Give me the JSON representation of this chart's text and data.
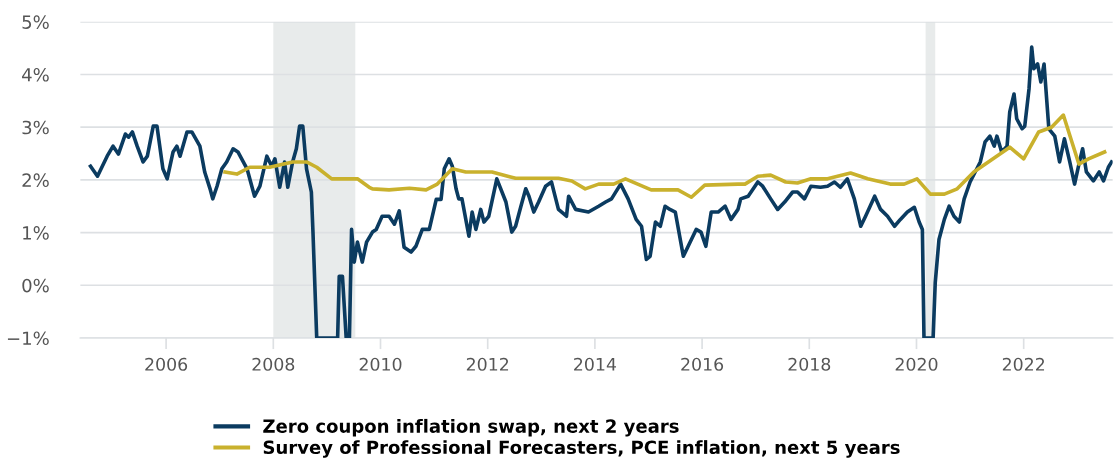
{
  "chart_data": {
    "type": "line",
    "xlim": [
      2004.4,
      2023.66
    ],
    "xticks": [
      2006,
      2008,
      2010,
      2012,
      2014,
      2016,
      2018,
      2020,
      2022
    ],
    "ylim": [
      -1,
      5
    ],
    "yticks": [
      {
        "value": -1,
        "label": "−1%"
      },
      {
        "value": 0,
        "label": "0%"
      },
      {
        "value": 1,
        "label": "1%"
      },
      {
        "value": 2,
        "label": "2%"
      },
      {
        "value": 3,
        "label": "3%"
      },
      {
        "value": 4,
        "label": "4%"
      },
      {
        "value": 5,
        "label": "5%"
      }
    ],
    "grid": "y",
    "legend": "bottom",
    "marker": "none",
    "line_style": "solid",
    "bands": [
      {
        "axis": "x",
        "from": 2008.0,
        "to": 2009.53,
        "color": "#e8ebeb"
      },
      {
        "axis": "x",
        "from": 2020.17,
        "to": 2020.35,
        "color": "#e8ebeb"
      }
    ],
    "series": [
      {
        "name": "Zero coupon inflation swap, next 2 years",
        "color": "#0b3b60",
        "x": [
          2004.59,
          2004.72,
          2004.9,
          2005.01,
          2005.11,
          2005.24,
          2005.3,
          2005.37,
          2005.46,
          2005.57,
          2005.65,
          2005.76,
          2005.83,
          2005.94,
          2006.02,
          2006.13,
          2006.2,
          2006.26,
          2006.39,
          2006.48,
          2006.63,
          2006.72,
          2006.82,
          2006.87,
          2006.95,
          2007.04,
          2007.13,
          2007.25,
          2007.34,
          2007.51,
          2007.65,
          2007.75,
          2007.88,
          2007.97,
          2008.03,
          2008.12,
          2008.21,
          2008.27,
          2008.36,
          2008.43,
          2008.49,
          2008.55,
          2008.62,
          2008.71,
          2008.74,
          2008.81,
          2009.2,
          2009.23,
          2009.29,
          2009.36,
          2009.42,
          2009.46,
          2009.51,
          2009.57,
          2009.66,
          2009.74,
          2009.85,
          2009.92,
          2010.03,
          2010.16,
          2010.26,
          2010.35,
          2010.44,
          2010.57,
          2010.66,
          2010.78,
          2010.91,
          2011.04,
          2011.13,
          2011.19,
          2011.28,
          2011.34,
          2011.41,
          2011.46,
          2011.52,
          2011.65,
          2011.71,
          2011.78,
          2011.87,
          2011.93,
          2012.02,
          2012.17,
          2012.34,
          2012.45,
          2012.52,
          2012.62,
          2012.71,
          2012.77,
          2012.86,
          2012.95,
          2013.08,
          2013.19,
          2013.27,
          2013.32,
          2013.47,
          2013.51,
          2013.64,
          2013.88,
          2014.07,
          2014.2,
          2014.31,
          2014.48,
          2014.62,
          2014.77,
          2014.87,
          2014.96,
          2015.03,
          2015.13,
          2015.22,
          2015.31,
          2015.4,
          2015.5,
          2015.65,
          2015.74,
          2015.89,
          2015.98,
          2016.07,
          2016.17,
          2016.3,
          2016.43,
          2016.54,
          2016.67,
          2016.72,
          2016.86,
          2017.04,
          2017.13,
          2017.28,
          2017.41,
          2017.54,
          2017.69,
          2017.78,
          2017.91,
          2018.03,
          2018.21,
          2018.34,
          2018.47,
          2018.58,
          2018.71,
          2018.84,
          2018.96,
          2019.05,
          2019.22,
          2019.33,
          2019.46,
          2019.59,
          2019.7,
          2019.83,
          2019.96,
          2020.05,
          2020.11,
          2020.14,
          2020.31,
          2020.35,
          2020.42,
          2020.52,
          2020.61,
          2020.7,
          2020.8,
          2020.89,
          2021.0,
          2021.19,
          2021.28,
          2021.37,
          2021.45,
          2021.5,
          2021.59,
          2021.69,
          2021.74,
          2021.82,
          2021.87,
          2021.97,
          2022.02,
          2022.1,
          2022.15,
          2022.19,
          2022.26,
          2022.32,
          2022.38,
          2022.47,
          2022.58,
          2022.67,
          2022.76,
          2022.86,
          2022.95,
          2023.04,
          2023.1,
          2023.17,
          2023.3,
          2023.41,
          2023.49,
          2023.58,
          2023.64
        ],
        "values": [
          2.26,
          2.07,
          2.45,
          2.64,
          2.49,
          2.87,
          2.81,
          2.91,
          2.64,
          2.34,
          2.45,
          3.02,
          3.02,
          2.21,
          2.02,
          2.53,
          2.64,
          2.45,
          2.91,
          2.91,
          2.64,
          2.15,
          1.83,
          1.64,
          1.88,
          2.21,
          2.34,
          2.59,
          2.53,
          2.21,
          1.69,
          1.88,
          2.45,
          2.26,
          2.4,
          1.86,
          2.34,
          1.86,
          2.34,
          2.59,
          3.02,
          3.02,
          2.21,
          1.77,
          1.01,
          -1,
          -1,
          0.17,
          0.17,
          -1,
          -1,
          1.06,
          0.44,
          0.82,
          0.44,
          0.82,
          1.01,
          1.06,
          1.31,
          1.31,
          1.16,
          1.41,
          0.72,
          0.63,
          0.74,
          1.06,
          1.06,
          1.63,
          1.63,
          2.21,
          2.4,
          2.26,
          1.83,
          1.64,
          1.64,
          0.93,
          1.39,
          1.06,
          1.44,
          1.2,
          1.31,
          2.02,
          1.58,
          1.01,
          1.12,
          1.5,
          1.83,
          1.69,
          1.39,
          1.58,
          1.88,
          1.96,
          1.64,
          1.44,
          1.31,
          1.69,
          1.44,
          1.39,
          1.5,
          1.58,
          1.64,
          1.92,
          1.64,
          1.25,
          1.12,
          0.49,
          0.55,
          1.2,
          1.12,
          1.5,
          1.44,
          1.39,
          0.55,
          0.74,
          1.06,
          1.01,
          0.74,
          1.39,
          1.39,
          1.5,
          1.25,
          1.44,
          1.64,
          1.69,
          1.96,
          1.88,
          1.64,
          1.44,
          1.58,
          1.77,
          1.77,
          1.64,
          1.88,
          1.86,
          1.88,
          1.96,
          1.86,
          2.02,
          1.64,
          1.12,
          1.31,
          1.69,
          1.44,
          1.31,
          1.12,
          1.25,
          1.39,
          1.48,
          1.2,
          1.06,
          -1,
          -1,
          0.05,
          0.87,
          1.25,
          1.5,
          1.31,
          1.2,
          1.64,
          1.96,
          2.34,
          2.72,
          2.83,
          2.64,
          2.83,
          2.53,
          2.64,
          3.29,
          3.63,
          3.16,
          2.97,
          3.02,
          3.73,
          4.52,
          4.11,
          4.2,
          3.86,
          4.2,
          2.97,
          2.83,
          2.34,
          2.78,
          2.34,
          1.92,
          2.34,
          2.59,
          2.15,
          1.98,
          2.15,
          1.98,
          2.24,
          2.34
        ]
      },
      {
        "name": "Survey of Professional Forecasters, PCE inflation, next 5 years",
        "color": "#c9b12d",
        "x": [
          2007.1,
          2007.32,
          2007.56,
          2007.93,
          2008.36,
          2008.62,
          2008.81,
          2009.09,
          2009.57,
          2009.79,
          2009.85,
          2010.16,
          2010.54,
          2010.85,
          2011.06,
          2011.34,
          2011.59,
          2012.08,
          2012.52,
          2013.32,
          2013.57,
          2013.82,
          2014.07,
          2014.35,
          2014.57,
          2015.05,
          2015.55,
          2015.8,
          2016.05,
          2016.67,
          2016.8,
          2017.04,
          2017.28,
          2017.56,
          2017.78,
          2018.03,
          2018.34,
          2018.77,
          2019.09,
          2019.51,
          2019.77,
          2020.01,
          2020.26,
          2020.52,
          2020.76,
          2021.07,
          2021.74,
          2022.0,
          2022.28,
          2022.52,
          2022.74,
          2023.03,
          2023.21,
          2023.51
        ],
        "values": [
          2.15,
          2.11,
          2.24,
          2.24,
          2.34,
          2.34,
          2.24,
          2.02,
          2.02,
          1.86,
          1.83,
          1.81,
          1.84,
          1.81,
          1.92,
          2.21,
          2.15,
          2.15,
          2.03,
          2.03,
          1.98,
          1.83,
          1.92,
          1.92,
          2.02,
          1.81,
          1.81,
          1.67,
          1.9,
          1.92,
          1.92,
          2.07,
          2.09,
          1.96,
          1.94,
          2.02,
          2.02,
          2.13,
          2.02,
          1.92,
          1.92,
          2.02,
          1.73,
          1.73,
          1.83,
          2.15,
          2.62,
          2.4,
          2.91,
          3.0,
          3.23,
          2.3,
          2.4,
          2.53
        ]
      }
    ]
  }
}
